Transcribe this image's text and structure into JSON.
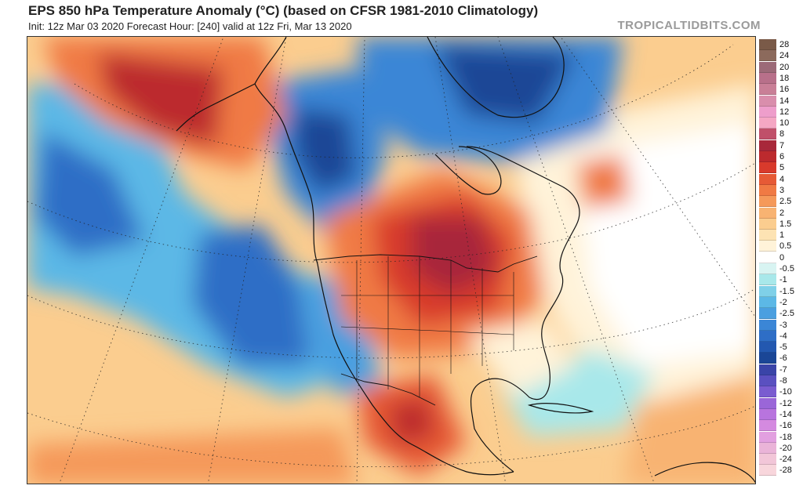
{
  "header": {
    "title": "EPS 850 hPa Temperature Anomaly (°C) (based on CFSR 1981-2010 Climatology)",
    "subtitle": "Init: 12z Mar 03 2020   Forecast Hour: [240]   valid at 12z Fri, Mar 13 2020",
    "brand": "TROPICALTIDBITS.COM"
  },
  "map": {
    "projection": "polar stereographic, North America",
    "variable": "850 hPa temperature anomaly",
    "units": "°C",
    "features": [
      {
        "name": "warm-anomaly-great-lakes",
        "sign": "positive",
        "peak": 7
      },
      {
        "name": "warm-anomaly-north-pacific",
        "sign": "positive",
        "peak": 7
      },
      {
        "name": "warm-anomaly-mexico",
        "sign": "positive",
        "peak": 5
      },
      {
        "name": "cold-anomaly-western-canada",
        "sign": "negative",
        "peak": -6
      },
      {
        "name": "cold-anomaly-greenland",
        "sign": "negative",
        "peak": -6
      },
      {
        "name": "cold-anomaly-eastern-pacific",
        "sign": "negative",
        "peak": -5
      },
      {
        "name": "cold-anomaly-bering-sea",
        "sign": "negative",
        "peak": -5
      }
    ]
  },
  "colorbar": {
    "levels": [
      {
        "label": "28",
        "color": "#7a5a48"
      },
      {
        "label": "24",
        "color": "#8c6a5c"
      },
      {
        "label": "20",
        "color": "#9c6a78"
      },
      {
        "label": "18",
        "color": "#b8708a"
      },
      {
        "label": "16",
        "color": "#c97f97"
      },
      {
        "label": "14",
        "color": "#d98eac"
      },
      {
        "label": "12",
        "color": "#ee9ecb"
      },
      {
        "label": "10",
        "color": "#f5a7c4"
      },
      {
        "label": "8",
        "color": "#c0506a"
      },
      {
        "label": "7",
        "color": "#a8283a"
      },
      {
        "label": "6",
        "color": "#bc2a2e"
      },
      {
        "label": "5",
        "color": "#d83a2c"
      },
      {
        "label": "4",
        "color": "#e65a36"
      },
      {
        "label": "3",
        "color": "#f07a44"
      },
      {
        "label": "2.5",
        "color": "#f5995a"
      },
      {
        "label": "2",
        "color": "#f8b372"
      },
      {
        "label": "1.5",
        "color": "#fbcd8f"
      },
      {
        "label": "1",
        "color": "#fde3b3"
      },
      {
        "label": "0.5",
        "color": "#fff3d9"
      },
      {
        "label": "0",
        "color": "#ffffff"
      },
      {
        "label": "-0.5",
        "color": "#d8f4f2"
      },
      {
        "label": "-1",
        "color": "#a8e8ea"
      },
      {
        "label": "-1.5",
        "color": "#7fd0e8"
      },
      {
        "label": "-2",
        "color": "#5cb8e6"
      },
      {
        "label": "-2.5",
        "color": "#4a9fe0"
      },
      {
        "label": "-3",
        "color": "#3b86d6"
      },
      {
        "label": "-4",
        "color": "#2e6ec6"
      },
      {
        "label": "-5",
        "color": "#2358b0"
      },
      {
        "label": "-6",
        "color": "#1a4696"
      },
      {
        "label": "-7",
        "color": "#3a44a8"
      },
      {
        "label": "-8",
        "color": "#5a50c0"
      },
      {
        "label": "-10",
        "color": "#7a5cd0"
      },
      {
        "label": "-12",
        "color": "#9a66d8"
      },
      {
        "label": "-14",
        "color": "#b874de"
      },
      {
        "label": "-16",
        "color": "#d48ae0"
      },
      {
        "label": "-18",
        "color": "#e2a0e0"
      },
      {
        "label": "-20",
        "color": "#eab4d8"
      },
      {
        "label": "-24",
        "color": "#f2c6d8"
      },
      {
        "label": "-28",
        "color": "#f8d6dc"
      }
    ]
  }
}
